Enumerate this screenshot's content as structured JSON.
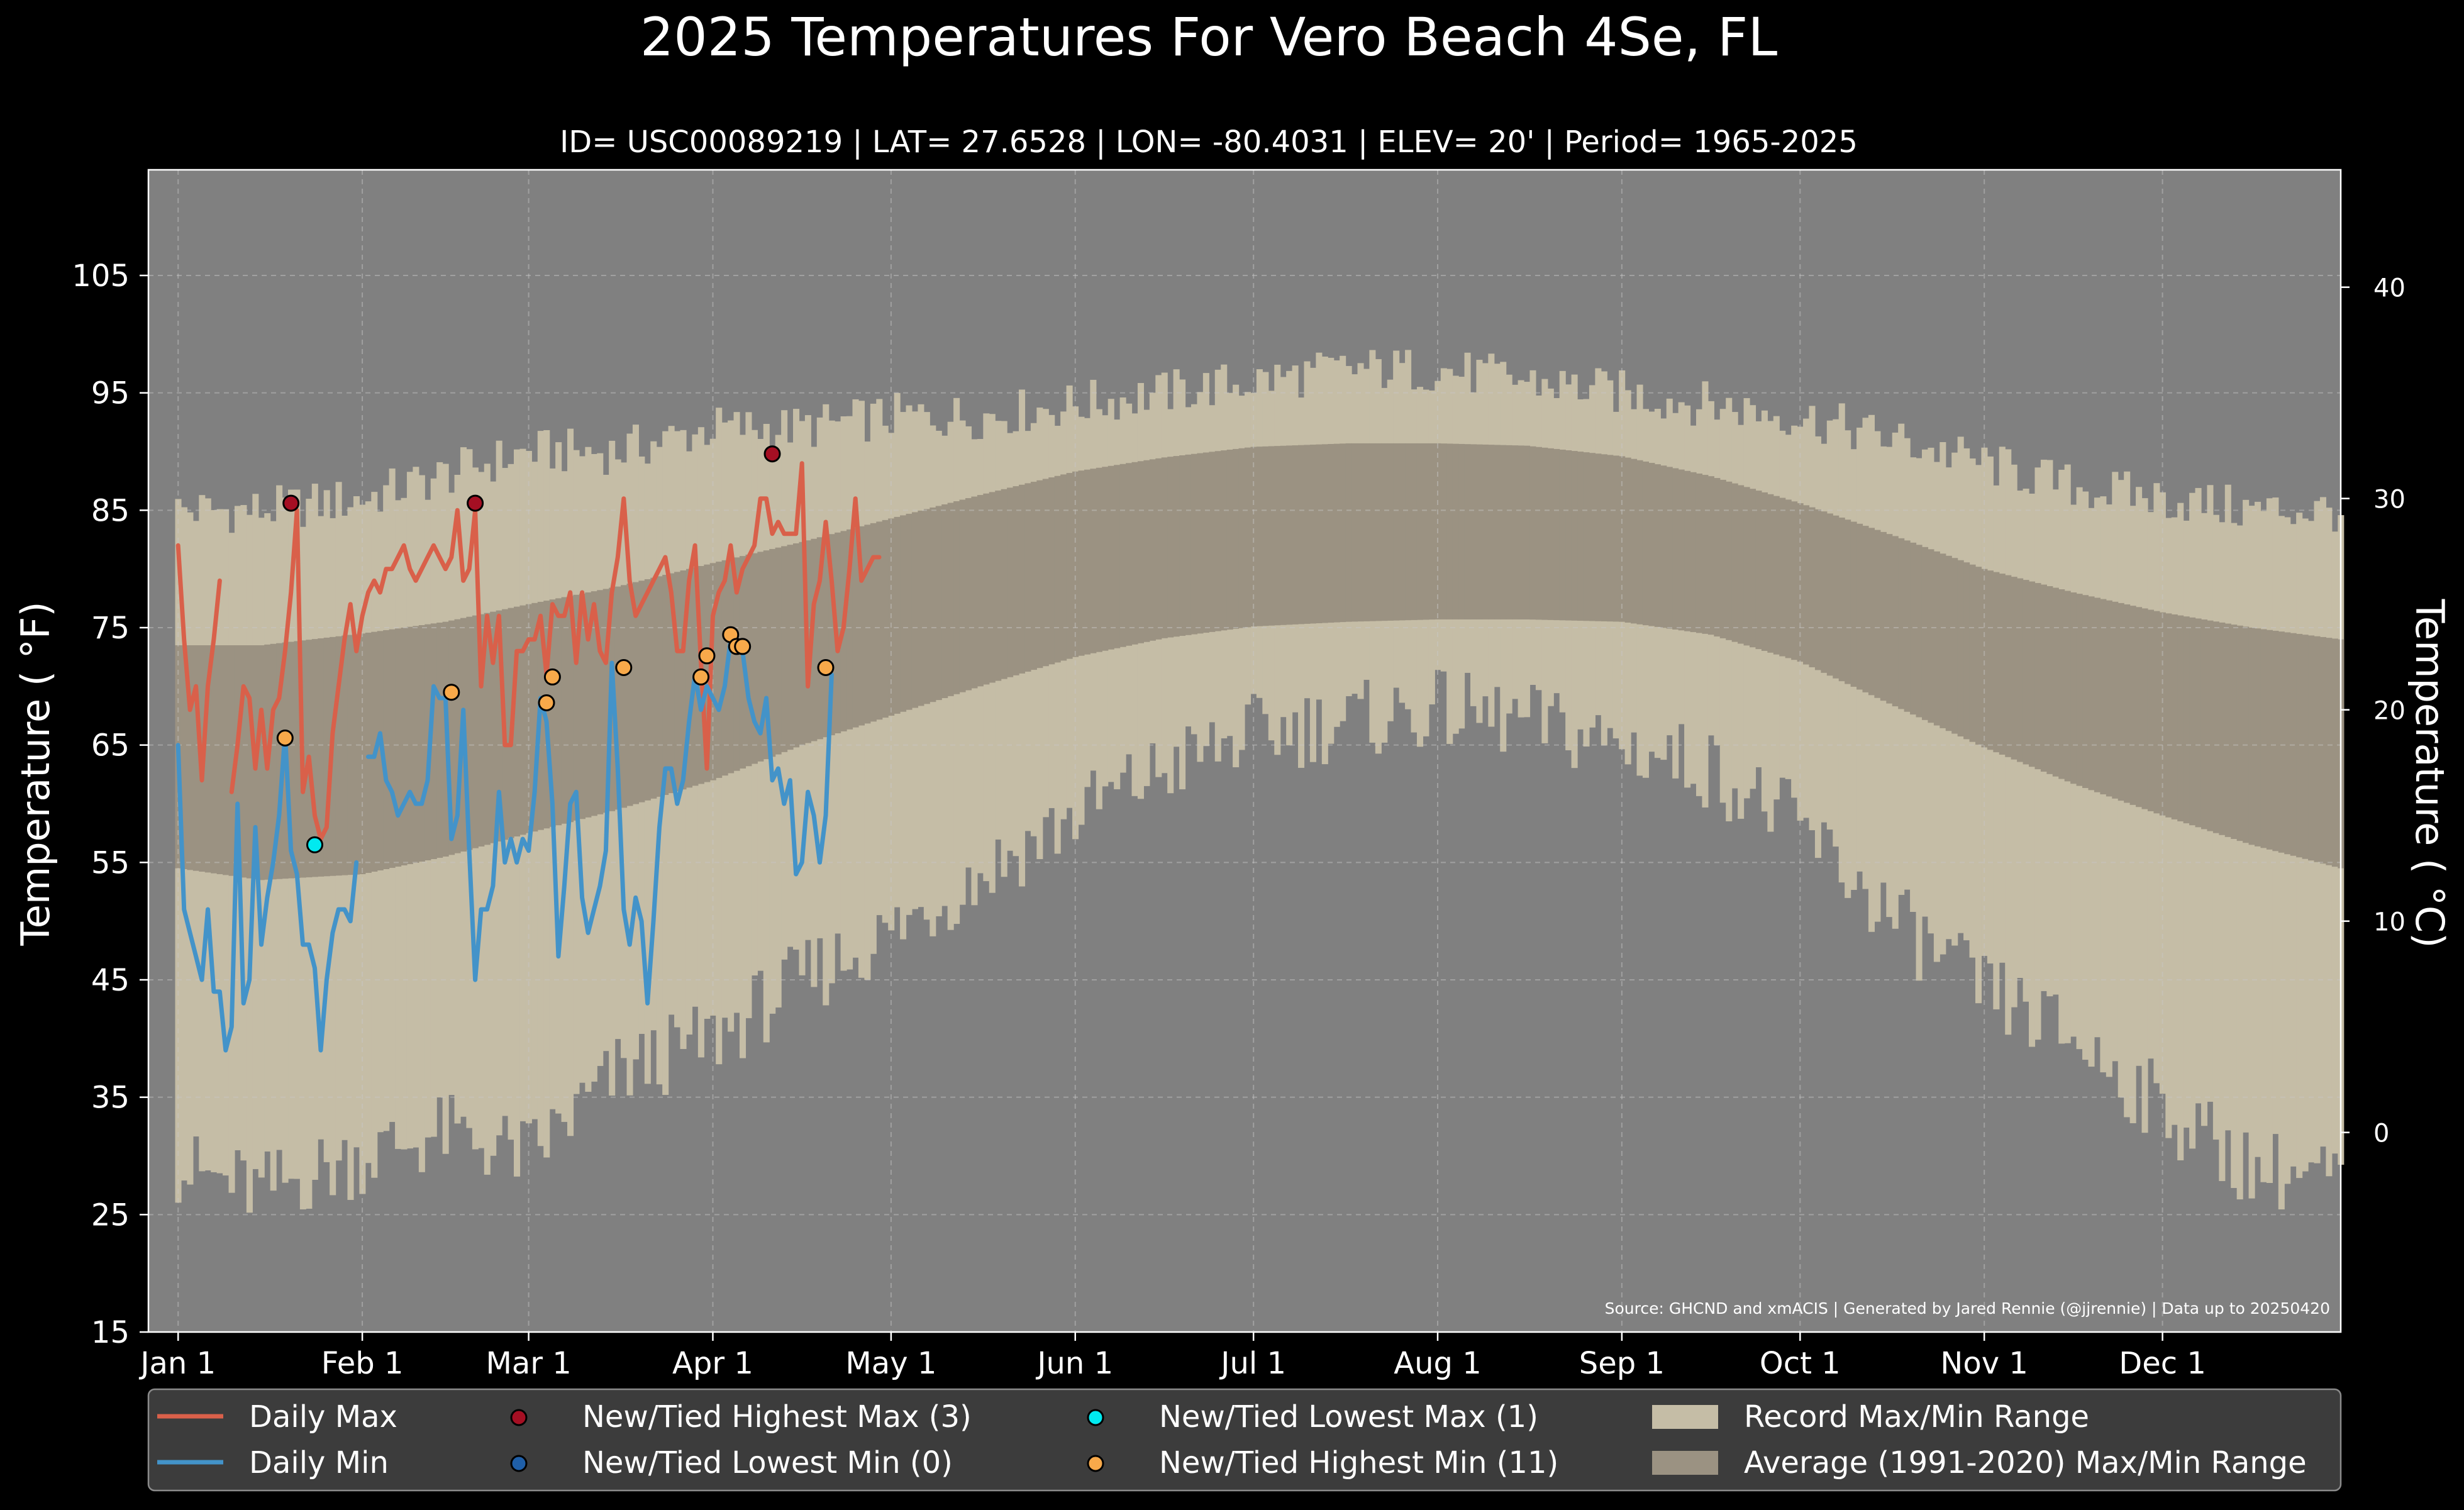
{
  "chart_data": {
    "type": "line",
    "title": "2025 Temperatures For Vero Beach 4Se, FL",
    "subtitle": "ID= USC00089219 | LAT= 27.6528 | LON= -80.4031 | ELEV= 20' | Period= 1965-2025",
    "ylabel": "Temperature ( °F)",
    "ylabel_right": "Temperature ( °C)",
    "source": "Source: GHCND and xmACIS | Generated by Jared Rennie (@jjrennie) | Data up to 20250420",
    "ylim": [
      15,
      114
    ],
    "xlim_days": [
      -4,
      365
    ],
    "yticks": [
      15,
      25,
      35,
      45,
      55,
      65,
      75,
      85,
      95,
      105
    ],
    "yticks_right": [
      0,
      10,
      20,
      30,
      40
    ],
    "x_tick_labels": [
      {
        "label": "Jan 1",
        "day": 1
      },
      {
        "label": "Feb 1",
        "day": 32
      },
      {
        "label": "Mar 1",
        "day": 60
      },
      {
        "label": "Apr 1",
        "day": 91
      },
      {
        "label": "May 1",
        "day": 121
      },
      {
        "label": "Jun 1",
        "day": 152
      },
      {
        "label": "Jul 1",
        "day": 182
      },
      {
        "label": "Aug 1",
        "day": 213
      },
      {
        "label": "Sep 1",
        "day": 244
      },
      {
        "label": "Oct 1",
        "day": 274
      },
      {
        "label": "Nov 1",
        "day": 305
      },
      {
        "label": "Dec 1",
        "day": 335
      }
    ],
    "grid": true,
    "legend_position": "bottom",
    "legend": [
      {
        "label": "Daily Max",
        "kind": "line",
        "color": "#d9604a"
      },
      {
        "label": "Daily Min",
        "kind": "line",
        "color": "#4393c9"
      },
      {
        "label": "New/Tied Highest Max (3)",
        "kind": "dot",
        "color": "#a50f23"
      },
      {
        "label": "New/Tied Lowest Min (0)",
        "kind": "dot",
        "color": "#1f5fa8"
      },
      {
        "label": "New/Tied Lowest Max (1)",
        "kind": "dot",
        "color": "#00eaf0"
      },
      {
        "label": "New/Tied Highest Min (11)",
        "kind": "dot",
        "color": "#f8a94a"
      },
      {
        "label": "Record Max/Min Range",
        "kind": "patch",
        "color": "#c5bda6"
      },
      {
        "label": "Average (1991-2020) Max/Min Range",
        "kind": "patch",
        "color": "#9b9282"
      }
    ],
    "colors": {
      "background": "#000000",
      "plot_background": "#808080",
      "record_range": "#c5bda6",
      "average_range": "#9b9282",
      "daily_max": "#d9604a",
      "daily_min": "#4393c9",
      "legend_background": "#3c3c3c"
    },
    "record_max_anchors": {
      "day": [
        1,
        15,
        32,
        46,
        60,
        75,
        91,
        106,
        121,
        136,
        152,
        167,
        182,
        198,
        213,
        228,
        244,
        259,
        274,
        290,
        305,
        320,
        335,
        350,
        365
      ],
      "value": [
        85,
        85,
        86,
        88,
        90,
        90,
        92,
        92,
        93,
        93,
        94,
        95,
        96,
        97,
        97,
        96,
        95,
        94,
        93,
        91,
        89,
        87,
        86,
        85,
        85
      ]
    },
    "record_min_anchors": {
      "day": [
        1,
        15,
        32,
        46,
        60,
        75,
        91,
        106,
        121,
        136,
        152,
        167,
        182,
        198,
        213,
        228,
        244,
        259,
        274,
        290,
        305,
        320,
        335,
        350,
        365
      ],
      "value": [
        29,
        27,
        30,
        32,
        30,
        37,
        40,
        45,
        49,
        54,
        59,
        63,
        66,
        67,
        68,
        67,
        65,
        63,
        58,
        50,
        44,
        40,
        34,
        29,
        28
      ]
    },
    "normal_max_anchors": {
      "day": [
        1,
        15,
        32,
        46,
        60,
        75,
        91,
        106,
        121,
        136,
        152,
        167,
        182,
        198,
        213,
        228,
        244,
        259,
        274,
        290,
        305,
        320,
        335,
        350,
        365
      ],
      "value": [
        73.5,
        73.5,
        74.5,
        75.5,
        77,
        78.5,
        80.5,
        82.3,
        84.3,
        86.3,
        88.3,
        89.5,
        90.4,
        90.7,
        90.7,
        90.5,
        89.6,
        87.9,
        85.6,
        82.8,
        80,
        78,
        76.3,
        75,
        74
      ]
    },
    "normal_min_anchors": {
      "day": [
        1,
        15,
        32,
        46,
        60,
        75,
        91,
        106,
        121,
        136,
        152,
        167,
        182,
        198,
        213,
        228,
        244,
        259,
        274,
        290,
        305,
        320,
        335,
        350,
        365
      ],
      "value": [
        54.5,
        53.5,
        54,
        55.5,
        57.5,
        59.5,
        62,
        65,
        67.5,
        70,
        72.5,
        74.1,
        75.1,
        75.5,
        75.7,
        75.7,
        75.5,
        74.4,
        72.1,
        68.3,
        64.8,
        61.7,
        59,
        56.5,
        54.5
      ]
    },
    "series": [
      {
        "name": "Daily Max",
        "start_day": 1,
        "values": [
          82,
          74,
          68,
          70,
          62,
          70,
          74,
          79,
          null,
          61,
          65,
          70,
          69,
          63,
          68,
          63,
          68,
          69,
          73,
          78,
          85,
          61,
          64,
          59,
          57,
          58,
          66,
          70,
          74,
          77,
          73,
          76,
          78,
          79,
          78,
          80,
          80,
          81,
          82,
          80,
          79,
          80,
          81,
          82,
          81,
          80,
          81,
          85,
          79,
          80,
          85,
          70,
          76,
          72,
          76,
          65,
          65,
          73,
          73,
          74,
          74,
          76,
          71,
          77,
          76,
          76,
          78,
          72,
          78,
          74,
          77,
          73,
          72,
          78,
          81,
          86,
          79,
          76,
          77,
          78,
          79,
          80,
          81,
          78,
          73,
          73,
          79,
          82,
          72,
          63,
          76,
          78,
          79,
          82,
          78,
          80,
          81,
          82,
          86,
          86,
          83,
          84,
          83,
          83,
          83,
          89,
          70,
          77,
          79,
          84,
          79,
          73,
          75,
          80,
          86,
          79,
          80,
          81,
          81
        ]
      },
      {
        "name": "Daily Min",
        "start_day": 1,
        "values": [
          65,
          51,
          49,
          47,
          45,
          51,
          44,
          44,
          39,
          41,
          60,
          43,
          45,
          58,
          48,
          52,
          55,
          59,
          66,
          56,
          54,
          48,
          48,
          46,
          39,
          45,
          49,
          51,
          51,
          50,
          55,
          null,
          64,
          64,
          66,
          62,
          61,
          59,
          60,
          61,
          60,
          60,
          62,
          70,
          69,
          69,
          57,
          59,
          68,
          56,
          45,
          51,
          51,
          53,
          61,
          55,
          57,
          55,
          57,
          56,
          61,
          69,
          67,
          60,
          47,
          53,
          60,
          61,
          52,
          49,
          51,
          53,
          56,
          72,
          63,
          51,
          48,
          52,
          50,
          43,
          50,
          58,
          63,
          63,
          60,
          62,
          67,
          71,
          68,
          70,
          69,
          68,
          70,
          74,
          73,
          73,
          69,
          67,
          66,
          69,
          62,
          63,
          60,
          62,
          54,
          55,
          61,
          59,
          55,
          59,
          71
        ]
      }
    ],
    "record_markers": [
      {
        "type": "New/Tied Highest Max",
        "day": 20,
        "value": 85.6
      },
      {
        "type": "New/Tied Highest Max",
        "day": 51,
        "value": 85.6
      },
      {
        "type": "New/Tied Highest Max",
        "day": 101,
        "value": 89.8
      },
      {
        "type": "New/Tied Lowest Max",
        "day": 24,
        "value": 56.5
      },
      {
        "type": "New/Tied Highest Min",
        "day": 19,
        "value": 65.6
      },
      {
        "type": "New/Tied Highest Min",
        "day": 47,
        "value": 69.5
      },
      {
        "type": "New/Tied Highest Min",
        "day": 63,
        "value": 68.6
      },
      {
        "type": "New/Tied Highest Min",
        "day": 64,
        "value": 70.8
      },
      {
        "type": "New/Tied Highest Min",
        "day": 76,
        "value": 71.6
      },
      {
        "type": "New/Tied Highest Min",
        "day": 89,
        "value": 70.8
      },
      {
        "type": "New/Tied Highest Min",
        "day": 90,
        "value": 72.6
      },
      {
        "type": "New/Tied Highest Min",
        "day": 94,
        "value": 74.4
      },
      {
        "type": "New/Tied Highest Min",
        "day": 95,
        "value": 73.4
      },
      {
        "type": "New/Tied Highest Min",
        "day": 96,
        "value": 73.4
      },
      {
        "type": "New/Tied Highest Min",
        "day": 110,
        "value": 71.6
      }
    ]
  }
}
